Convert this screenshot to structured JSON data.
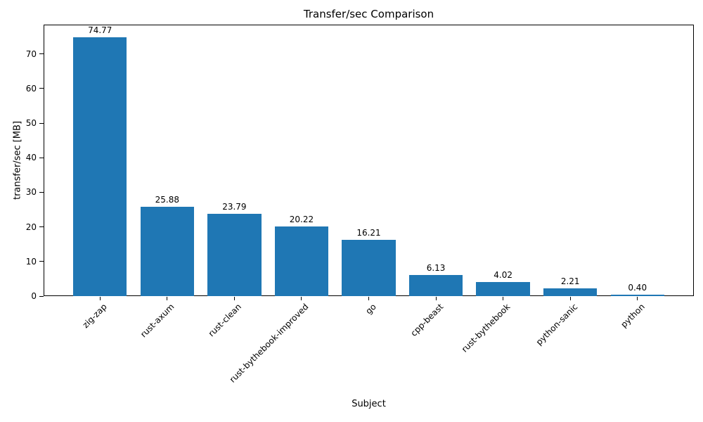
{
  "chart_data": {
    "type": "bar",
    "title": "Transfer/sec Comparison",
    "xlabel": "Subject",
    "ylabel": "transfer/sec [MB]",
    "categories": [
      "zig-zap",
      "rust-axum",
      "rust-clean",
      "rust-bythebook-improved",
      "go",
      "cpp-beast",
      "rust-bythebook",
      "python-sanic",
      "python"
    ],
    "values": [
      74.77,
      25.88,
      23.79,
      20.22,
      16.21,
      6.13,
      4.02,
      2.21,
      0.4
    ],
    "value_labels": [
      "74.77",
      "25.88",
      "23.79",
      "20.22",
      "16.21",
      "6.13",
      "4.02",
      "2.21",
      "0.40"
    ],
    "ylim": [
      0,
      78.5
    ],
    "yticks": [
      0,
      10,
      20,
      30,
      40,
      50,
      60,
      70
    ],
    "bar_color": "#1f77b4",
    "bar_width_fraction": 0.8,
    "xtick_rotation_deg": 45,
    "grid": false,
    "legend_position": "none"
  }
}
